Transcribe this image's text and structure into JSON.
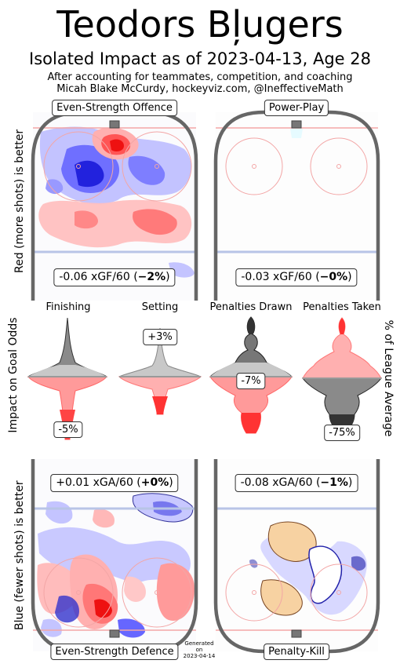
{
  "header": {
    "title": "Teodors Bļugers",
    "subtitle": "Isolated Impact as of 2023-04-13, Age 28",
    "note1": "After accounting for teammates, competition, and coaching",
    "note2": "Micah Blake McCurdy, hockeyviz.com, @IneffectiveMath"
  },
  "panels": {
    "ev_offence": {
      "label": "Even-Strength Offence",
      "value": "-0.06 xGF/60 (",
      "pct": "−2%",
      "close": ")"
    },
    "pp": {
      "label": "Power-Play",
      "value": "-0.03 xGF/60 (",
      "pct": "−0%",
      "close": ")"
    },
    "ev_defence": {
      "label": "Even-Strength Defence",
      "value": "+0.01 xGA/60 (",
      "pct": "+0%",
      "close": ")"
    },
    "pk": {
      "label": "Penalty-Kill",
      "value": "-0.08 xGA/60 (",
      "pct": "−1%",
      "close": ")"
    }
  },
  "side_labels": {
    "top": "Red (more shots) is better",
    "middle": "Impact on Goal Odds",
    "bottom": "Blue (fewer shots) is better",
    "right": "% of League Average"
  },
  "generated": {
    "line1": "Generated",
    "line2": "on",
    "line3": "2023-04-14"
  },
  "chart_data": {
    "type": "area",
    "violins": [
      {
        "name": "Finishing",
        "value_label": "-5%",
        "value": -5
      },
      {
        "name": "Setting",
        "value_label": "+3%",
        "value": 3
      },
      {
        "name": "Penalties Drawn",
        "value_label": "-7%",
        "value": -7
      },
      {
        "name": "Penalties Taken",
        "value_label": "-75%",
        "value": -75
      }
    ],
    "colors": {
      "red": "#ff2a2a",
      "blue": "#3333ff",
      "orange": "#f5c27a",
      "gray": "#909090",
      "rink": "#666666"
    }
  }
}
